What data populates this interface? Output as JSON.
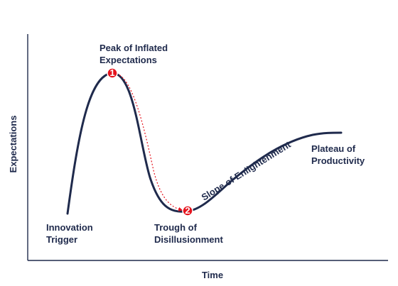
{
  "axes": {
    "y_label": "Expectations",
    "x_label": "Time"
  },
  "phases": {
    "innovation_trigger": [
      "Innovation",
      "Trigger"
    ],
    "peak": [
      "Peak of Inflated",
      "Expectations"
    ],
    "trough": [
      "Trough of",
      "Disillusionment"
    ],
    "slope": "Slope of Enlightenment",
    "plateau": [
      "Plateau of",
      "Productivity"
    ]
  },
  "markers": {
    "first": "1",
    "second": "2"
  },
  "colors": {
    "curve": "#1f2a4c",
    "text": "#1f2a4c",
    "axis": "#1f2a4c",
    "marker": "#e5131d",
    "arrow": "#e5131d",
    "background": "#ffffff"
  }
}
